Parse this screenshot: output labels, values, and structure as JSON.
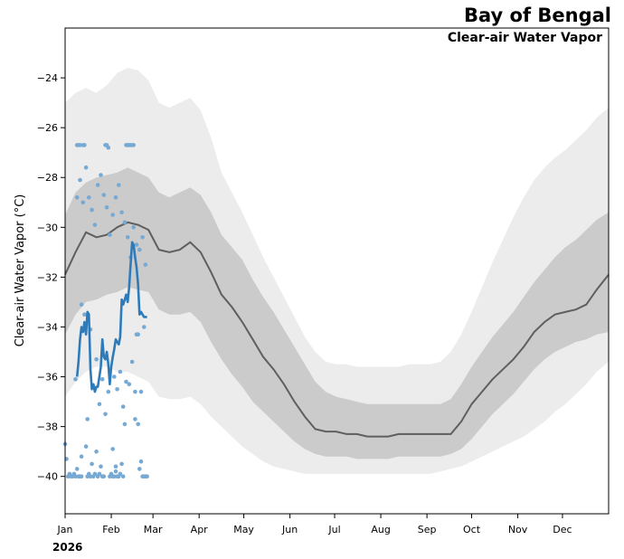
{
  "chart_data": {
    "type": "line",
    "title": "Bay of Bengal",
    "subtitle": "Clear-air Water Vapor",
    "ylabel": "Clear-air Water Vapor (°C)",
    "xlabel": "",
    "year": "2026",
    "ylim": [
      -41.5,
      -22.0
    ],
    "xlim": [
      1,
      366
    ],
    "y_ticks": [
      -40,
      -38,
      -36,
      -34,
      -32,
      -30,
      -28,
      -26,
      -24
    ],
    "x_ticks": [
      {
        "day": 1,
        "label": "Jan"
      },
      {
        "day": 32,
        "label": "Feb"
      },
      {
        "day": 60,
        "label": "Mar"
      },
      {
        "day": 91,
        "label": "Apr"
      },
      {
        "day": 121,
        "label": "May"
      },
      {
        "day": 152,
        "label": "Jun"
      },
      {
        "day": 182,
        "label": "Jul"
      },
      {
        "day": 213,
        "label": "Aug"
      },
      {
        "day": 244,
        "label": "Sep"
      },
      {
        "day": 274,
        "label": "Oct"
      },
      {
        "day": 305,
        "label": "Nov"
      },
      {
        "day": 335,
        "label": "Dec"
      }
    ],
    "climatology": {
      "day": [
        1,
        8,
        15,
        22,
        29,
        36,
        43,
        50,
        57,
        64,
        71,
        78,
        85,
        92,
        99,
        106,
        113,
        120,
        127,
        134,
        141,
        148,
        155,
        162,
        169,
        176,
        183,
        190,
        197,
        204,
        211,
        218,
        225,
        232,
        239,
        246,
        253,
        260,
        267,
        274,
        281,
        288,
        295,
        302,
        309,
        316,
        323,
        330,
        337,
        344,
        351,
        358,
        366
      ],
      "mean": [
        -31.9,
        -31.0,
        -30.2,
        -30.4,
        -30.3,
        -30.0,
        -29.8,
        -29.9,
        -30.1,
        -30.9,
        -31.0,
        -30.9,
        -30.6,
        -31.0,
        -31.8,
        -32.7,
        -33.2,
        -33.8,
        -34.5,
        -35.2,
        -35.7,
        -36.3,
        -37.0,
        -37.6,
        -38.1,
        -38.2,
        -38.2,
        -38.3,
        -38.3,
        -38.4,
        -38.4,
        -38.4,
        -38.3,
        -38.3,
        -38.3,
        -38.3,
        -38.3,
        -38.3,
        -37.8,
        -37.1,
        -36.6,
        -36.1,
        -35.7,
        -35.3,
        -34.8,
        -34.2,
        -33.8,
        -33.5,
        -33.4,
        -33.3,
        -33.1,
        -32.5,
        -31.9
      ],
      "p25": [
        -34.3,
        -33.5,
        -33.0,
        -32.9,
        -32.7,
        -32.6,
        -32.4,
        -32.5,
        -32.6,
        -33.3,
        -33.5,
        -33.5,
        -33.4,
        -33.8,
        -34.6,
        -35.3,
        -35.9,
        -36.4,
        -37.0,
        -37.4,
        -37.8,
        -38.2,
        -38.6,
        -38.9,
        -39.1,
        -39.2,
        -39.2,
        -39.2,
        -39.3,
        -39.3,
        -39.3,
        -39.3,
        -39.2,
        -39.2,
        -39.2,
        -39.2,
        -39.2,
        -39.1,
        -38.9,
        -38.5,
        -38.0,
        -37.5,
        -37.1,
        -36.7,
        -36.2,
        -35.7,
        -35.3,
        -35.0,
        -34.8,
        -34.6,
        -34.5,
        -34.3,
        -34.2
      ],
      "p75": [
        -29.5,
        -28.6,
        -28.2,
        -28.0,
        -27.9,
        -27.8,
        -27.6,
        -27.8,
        -28.0,
        -28.6,
        -28.8,
        -28.6,
        -28.4,
        -28.7,
        -29.4,
        -30.3,
        -30.8,
        -31.3,
        -32.1,
        -32.8,
        -33.4,
        -34.1,
        -34.8,
        -35.5,
        -36.2,
        -36.6,
        -36.8,
        -36.9,
        -37.0,
        -37.1,
        -37.1,
        -37.1,
        -37.1,
        -37.1,
        -37.1,
        -37.1,
        -37.1,
        -36.9,
        -36.3,
        -35.6,
        -35.0,
        -34.4,
        -33.9,
        -33.4,
        -32.8,
        -32.2,
        -31.7,
        -31.2,
        -30.8,
        -30.5,
        -30.1,
        -29.7,
        -29.4
      ],
      "p5": [
        -36.8,
        -36.2,
        -35.8,
        -35.6,
        -35.6,
        -35.8,
        -35.8,
        -36.0,
        -36.2,
        -36.8,
        -36.9,
        -36.9,
        -36.8,
        -37.1,
        -37.6,
        -38.0,
        -38.4,
        -38.8,
        -39.1,
        -39.4,
        -39.6,
        -39.7,
        -39.8,
        -39.9,
        -39.9,
        -39.9,
        -39.9,
        -39.9,
        -39.9,
        -39.9,
        -39.9,
        -39.9,
        -39.9,
        -39.9,
        -39.9,
        -39.9,
        -39.8,
        -39.7,
        -39.6,
        -39.4,
        -39.2,
        -39.0,
        -38.8,
        -38.6,
        -38.4,
        -38.1,
        -37.8,
        -37.4,
        -37.1,
        -36.7,
        -36.3,
        -35.8,
        -35.4
      ],
      "p95": [
        -25.0,
        -24.6,
        -24.4,
        -24.6,
        -24.3,
        -23.8,
        -23.6,
        -23.7,
        -24.1,
        -25.0,
        -25.2,
        -25.0,
        -24.8,
        -25.3,
        -26.4,
        -27.8,
        -28.6,
        -29.4,
        -30.3,
        -31.2,
        -32.0,
        -32.8,
        -33.6,
        -34.4,
        -35.0,
        -35.4,
        -35.5,
        -35.5,
        -35.6,
        -35.6,
        -35.6,
        -35.6,
        -35.6,
        -35.5,
        -35.5,
        -35.5,
        -35.4,
        -35.0,
        -34.3,
        -33.4,
        -32.4,
        -31.4,
        -30.5,
        -29.6,
        -28.8,
        -28.1,
        -27.6,
        -27.2,
        -26.9,
        -26.5,
        -26.1,
        -25.6,
        -25.2
      ]
    },
    "current_year": {
      "day": [
        9,
        10,
        11,
        12,
        13,
        14,
        15,
        16,
        17,
        18,
        19,
        20,
        21,
        22,
        23,
        24,
        25,
        26,
        27,
        28,
        29,
        30,
        31,
        32,
        33,
        34,
        35,
        36,
        37,
        38,
        39,
        40,
        41,
        42,
        43,
        44,
        45,
        46,
        47,
        48,
        49,
        50,
        51,
        52,
        53,
        54,
        55,
        56
      ],
      "value": [
        -36.0,
        -35.4,
        -34.5,
        -34.0,
        -34.2,
        -33.8,
        -34.3,
        -33.4,
        -33.5,
        -35.7,
        -36.5,
        -36.3,
        -36.6,
        -36.4,
        -36.4,
        -36.0,
        -35.6,
        -34.5,
        -35.2,
        -35.3,
        -35.0,
        -35.5,
        -36.3,
        -35.6,
        -35.2,
        -34.9,
        -34.5,
        -34.6,
        -34.7,
        -34.4,
        -32.9,
        -33.1,
        -32.9,
        -32.7,
        -33.0,
        -32.4,
        -31.5,
        -30.6,
        -30.7,
        -31.2,
        -31.6,
        -32.3,
        -33.5,
        -33.4,
        -33.5,
        -33.6,
        -33.6,
        -33.6
      ]
    },
    "observations": {
      "day": [
        1,
        2,
        3,
        4,
        5,
        6,
        7,
        8,
        9,
        9,
        10,
        10,
        11,
        11,
        12,
        12,
        13,
        14,
        15,
        16,
        17,
        18,
        19,
        20,
        21,
        22,
        23,
        24,
        25,
        26,
        27,
        28,
        29,
        30,
        31,
        32,
        33,
        33,
        34,
        35,
        35,
        36,
        37,
        38,
        39,
        40,
        41,
        42,
        43,
        44,
        45,
        46,
        47,
        48,
        49,
        50,
        51,
        52,
        53,
        54,
        55,
        56,
        9,
        11,
        13,
        15,
        17,
        19,
        21,
        23,
        25,
        27,
        29,
        31,
        33,
        35,
        37,
        39,
        41,
        43,
        45,
        47,
        49,
        51,
        53,
        55,
        12,
        14,
        18,
        22,
        26,
        30,
        34,
        38,
        42,
        46,
        50,
        54,
        8,
        16,
        24,
        28,
        36,
        40,
        44,
        48,
        52
      ],
      "value": [
        -38.7,
        -39.3,
        -40.0,
        -39.9,
        -40.0,
        -40.0,
        -39.9,
        -40.0,
        -26.7,
        -39.7,
        -26.7,
        -40.0,
        -26.7,
        -40.0,
        -39.2,
        -40.0,
        -26.7,
        -26.7,
        -38.8,
        -40.0,
        -39.9,
        -40.0,
        -39.5,
        -40.0,
        -39.9,
        -39.0,
        -40.0,
        -39.9,
        -39.6,
        -40.0,
        -40.0,
        -26.7,
        -26.7,
        -26.8,
        -40.0,
        -39.9,
        -40.0,
        -38.9,
        -40.0,
        -39.8,
        -39.6,
        -40.0,
        -40.0,
        -39.9,
        -39.5,
        -40.0,
        -37.9,
        -26.7,
        -26.7,
        -26.7,
        -26.7,
        -26.7,
        -26.7,
        -36.6,
        -34.3,
        -37.9,
        -39.7,
        -39.4,
        -40.0,
        -40.0,
        -40.0,
        -40.0,
        -28.8,
        -28.1,
        -29.0,
        -27.6,
        -28.8,
        -29.3,
        -29.9,
        -28.3,
        -27.9,
        -28.7,
        -29.2,
        -30.3,
        -29.5,
        -28.8,
        -28.3,
        -29.4,
        -29.8,
        -30.4,
        -31.2,
        -30.0,
        -30.7,
        -30.9,
        -30.4,
        -31.5,
        -33.1,
        -33.5,
        -34.1,
        -35.3,
        -36.1,
        -36.6,
        -36.0,
        -35.8,
        -36.2,
        -35.4,
        -34.3,
        -34.0,
        -36.1,
        -37.7,
        -37.1,
        -37.5,
        -36.5,
        -37.2,
        -36.3,
        -37.7,
        -36.6
      ]
    },
    "colors": {
      "band_outer": "#ececec",
      "band_inner": "#cbcbcb",
      "mean_line": "#5f5f5f",
      "current_line": "#2f7ab8",
      "observation_dot": "#76a9d4"
    }
  }
}
